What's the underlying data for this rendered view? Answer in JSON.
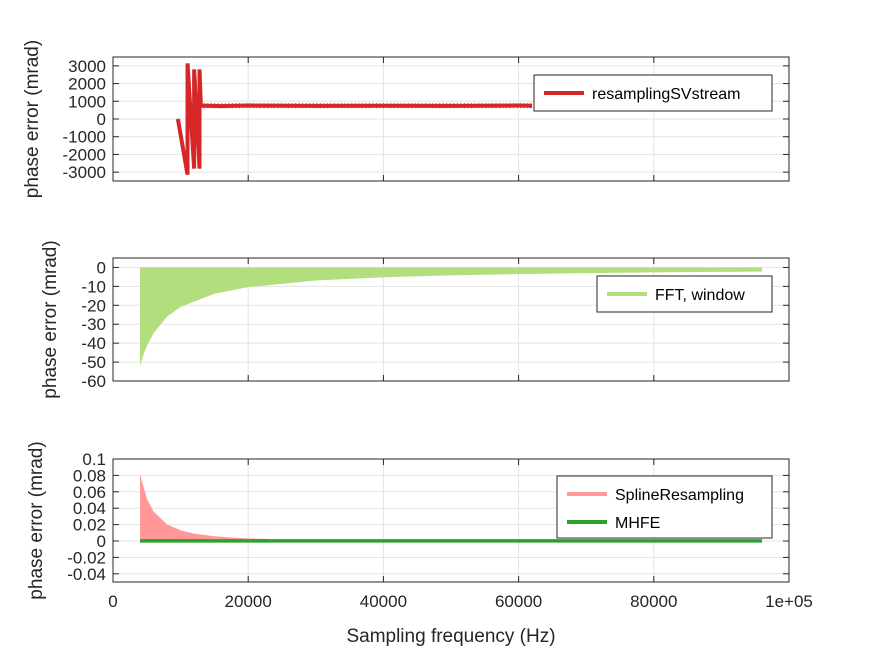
{
  "chart_data": [
    {
      "type": "line",
      "ylabel": "phase error (mrad)",
      "xlim": [
        0,
        100000
      ],
      "ylim": [
        -3500,
        3500
      ],
      "yticks": [
        -3000,
        -2000,
        -1000,
        0,
        1000,
        2000,
        3000
      ],
      "yticklabels": [
        "-3000",
        "-2000",
        "-1000",
        "0",
        "1000",
        "2000",
        "3000"
      ],
      "grid": true,
      "legend_position": "top-right",
      "series": [
        {
          "name": "resamplingSVstream",
          "color": "#d62728",
          "style": "line",
          "x": [
            9600,
            11025,
            11025,
            12000,
            12000,
            12800,
            12800,
            13000,
            14000,
            16000,
            20000,
            30000,
            40000,
            50000,
            60000,
            62000
          ],
          "y": [
            0,
            -3140,
            3140,
            -2800,
            2800,
            -2800,
            2800,
            750,
            750,
            730,
            760,
            740,
            750,
            740,
            760,
            750
          ]
        }
      ]
    },
    {
      "type": "area",
      "ylabel": "phase error (mrad)",
      "xlim": [
        0,
        100000
      ],
      "ylim": [
        -60,
        5
      ],
      "yticks": [
        -60,
        -50,
        -40,
        -30,
        -20,
        -10,
        0
      ],
      "yticklabels": [
        "-60",
        "-50",
        "-40",
        "-30",
        "-20",
        "-10",
        "0"
      ],
      "grid": true,
      "legend_position": "right",
      "series": [
        {
          "name": "FFT, window",
          "color": "#b3de7e",
          "style": "fill",
          "x": [
            4000,
            4500,
            5000,
            6000,
            8000,
            10000,
            15000,
            20000,
            30000,
            40000,
            50000,
            60000,
            70000,
            80000,
            90000,
            96000
          ],
          "y": [
            -52,
            -46.2,
            -41.6,
            -34.7,
            -26,
            -20.8,
            -13.9,
            -10.4,
            -6.9,
            -5.2,
            -4.2,
            -3.5,
            -3,
            -2.6,
            -2.3,
            -2.2
          ]
        }
      ]
    },
    {
      "type": "area",
      "ylabel": "phase error (mrad)",
      "xlim": [
        0,
        100000
      ],
      "ylim": [
        -0.05,
        0.1
      ],
      "yticks": [
        -0.04,
        -0.02,
        0,
        0.02,
        0.04,
        0.06,
        0.08,
        0.1
      ],
      "yticklabels": [
        "-0.04",
        "-0.02",
        "0",
        "0.02",
        "0.04",
        "0.06",
        "0.08",
        "0.1"
      ],
      "xticks": [
        0,
        20000,
        40000,
        60000,
        80000,
        100000
      ],
      "xticklabels": [
        "0",
        "20000",
        "40000",
        "60000",
        "80000",
        "1e+05"
      ],
      "xlabel": "Sampling frequency (Hz)",
      "grid": true,
      "legend_position": "top-right",
      "series": [
        {
          "name": "SplineResampling",
          "color": "#ff9896",
          "style": "fill",
          "x": [
            4000,
            5000,
            6000,
            8000,
            10000,
            12000,
            15000,
            18000,
            20000,
            23000
          ],
          "y": [
            0.081,
            0.052,
            0.036,
            0.0203,
            0.013,
            0.009,
            0.0058,
            0.004,
            0.0032,
            0.0025
          ]
        },
        {
          "name": "MHFE",
          "color": "#2ca02c",
          "style": "line",
          "x": [
            4000,
            96000
          ],
          "y": [
            0.0002,
            0.0002
          ]
        }
      ]
    }
  ]
}
